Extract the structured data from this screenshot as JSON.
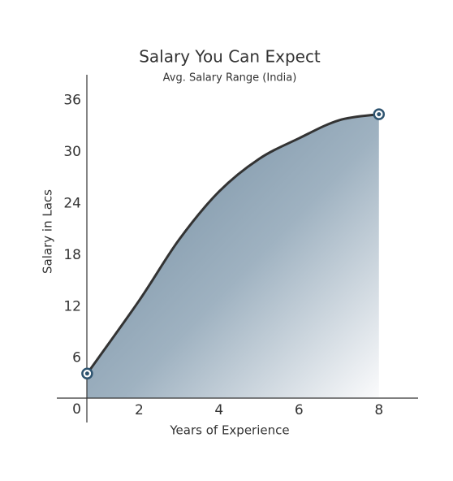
{
  "chart_data": {
    "type": "area",
    "title": "Salary You Can Expect",
    "subtitle": "Avg. Salary Range (India)",
    "x_label": "Years of Experience",
    "y_label": "Salary in Lacs",
    "x": [
      0.7,
      2,
      3,
      4,
      5,
      6,
      7,
      8
    ],
    "values": [
      4.2,
      12.7,
      19.8,
      25.4,
      29.2,
      31.6,
      33.7,
      34.4
    ],
    "color": "#333333",
    "marker_color": "#2e5470",
    "xlim": [
      -0.1,
      9
    ],
    "ylim": [
      -1.5,
      39
    ],
    "xticks": [
      2,
      4,
      6,
      8
    ],
    "yticks": [
      0,
      6,
      12,
      18,
      24,
      30,
      36
    ],
    "grid": false
  }
}
